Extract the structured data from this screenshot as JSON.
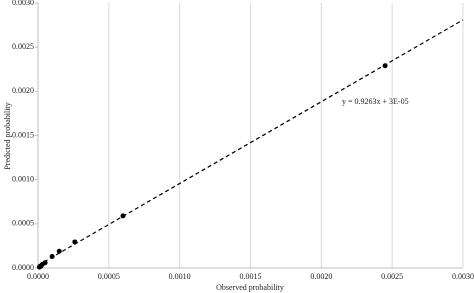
{
  "chart_data": {
    "type": "scatter",
    "x_label": "Observed probability",
    "y_label": "Predicted probability",
    "x": [
      0.00245,
      0.0006,
      0.00026,
      0.00015,
      0.0001,
      5e-05,
      3e-05,
      2e-05,
      1e-05
    ],
    "values": [
      0.00229,
      0.00059,
      0.000295,
      0.00019,
      0.00013,
      6e-05,
      4e-05,
      2e-05,
      1e-05
    ],
    "color": "#000000",
    "trendline": {
      "slope": 0.9263,
      "intercept": 3e-05,
      "label": "y = 0.9263x + 3E-05",
      "color": "#000000"
    },
    "xlim": [
      0,
      0.003
    ],
    "ylim": [
      0,
      0.003
    ],
    "xticks": [
      {
        "value": 0,
        "label": "0.0000"
      },
      {
        "value": 0.0005,
        "label": "0.0005"
      },
      {
        "value": 0.001,
        "label": "0.0010"
      },
      {
        "value": 0.0015,
        "label": "0.0015"
      },
      {
        "value": 0.002,
        "label": "0.0020"
      },
      {
        "value": 0.0025,
        "label": "0.0025"
      },
      {
        "value": 0.003,
        "label": "0.0030"
      }
    ],
    "yticks": [
      {
        "value": 0,
        "label": "0.0000"
      },
      {
        "value": 0.0005,
        "label": "0.0005"
      },
      {
        "value": 0.001,
        "label": "0.0010"
      },
      {
        "value": 0.0015,
        "label": "0.0015"
      },
      {
        "value": 0.002,
        "label": "0.0020"
      },
      {
        "value": 0.0025,
        "label": "0.0025"
      },
      {
        "value": 0.003,
        "label": "0.0030"
      }
    ],
    "grid": true
  }
}
